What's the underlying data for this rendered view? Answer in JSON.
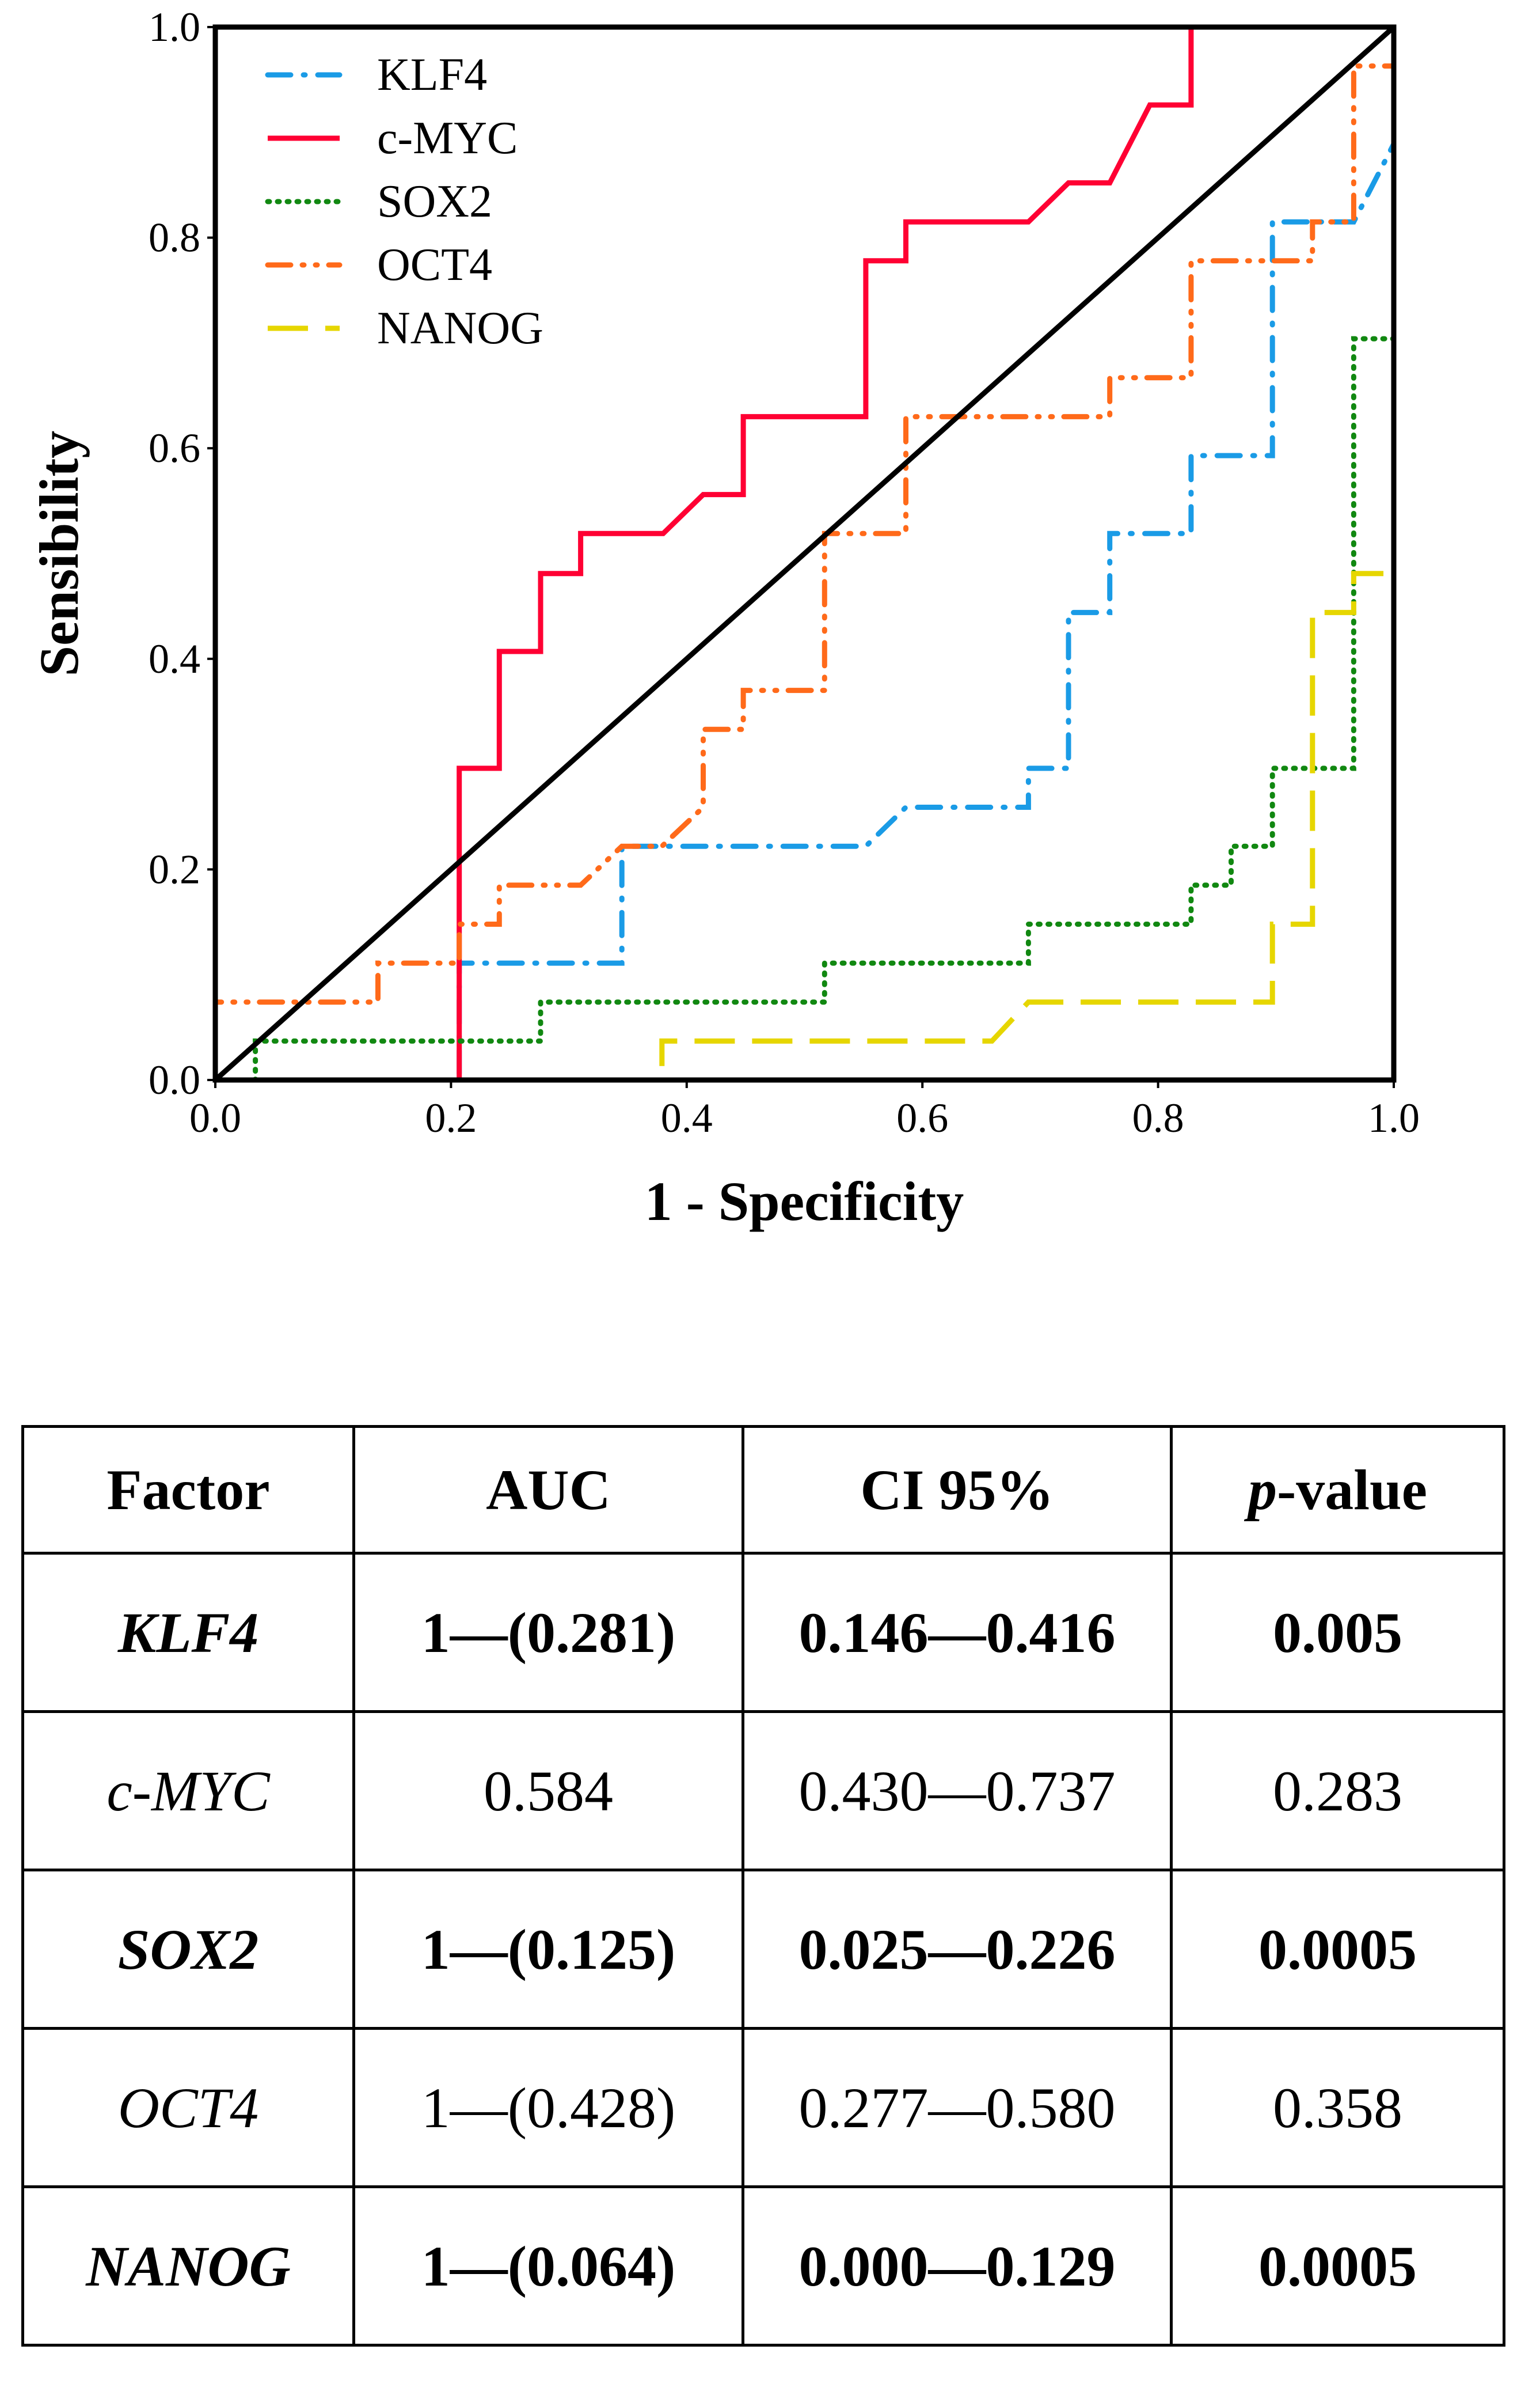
{
  "chart_data": {
    "type": "line",
    "title": "",
    "xlabel": "1 - Specificity",
    "ylabel": "Sensibility",
    "xlim": [
      0,
      1
    ],
    "ylim": [
      0,
      1
    ],
    "xticks": [
      "0.0",
      "0.2",
      "0.4",
      "0.6",
      "0.8",
      "1.0"
    ],
    "yticks": [
      "0.0",
      "0.2",
      "0.4",
      "0.6",
      "0.8",
      "1.0"
    ],
    "grid": false,
    "legend_position": "top-left",
    "reference_line": {
      "name": "diagonal",
      "x": [
        0,
        1
      ],
      "y": [
        0,
        1
      ],
      "color": "#000000"
    },
    "series": [
      {
        "name": "KLF4",
        "style": "dash-dot",
        "color": "#1a9be6",
        "x": [
          0,
          0.207,
          0.207,
          0.345,
          0.345,
          0.552,
          0.586,
          0.69,
          0.69,
          0.724,
          0.724,
          0.759,
          0.759,
          0.828,
          0.828,
          0.897,
          0.897,
          0.966,
          1.0,
          1.0
        ],
        "y": [
          0,
          0,
          0.111,
          0.111,
          0.222,
          0.222,
          0.259,
          0.259,
          0.296,
          0.296,
          0.444,
          0.444,
          0.519,
          0.519,
          0.593,
          0.593,
          0.815,
          0.815,
          0.889,
          1.0
        ]
      },
      {
        "name": "c-MYC",
        "style": "solid",
        "color": "#ff0033",
        "x": [
          0,
          0.207,
          0.207,
          0.241,
          0.241,
          0.276,
          0.276,
          0.31,
          0.31,
          0.38,
          0.414,
          0.448,
          0.448,
          0.552,
          0.552,
          0.586,
          0.586,
          0.69,
          0.724,
          0.759,
          0.793,
          0.828,
          0.828,
          1.0
        ],
        "y": [
          0,
          0,
          0.296,
          0.296,
          0.407,
          0.407,
          0.481,
          0.481,
          0.519,
          0.519,
          0.556,
          0.556,
          0.63,
          0.63,
          0.778,
          0.778,
          0.815,
          0.815,
          0.852,
          0.852,
          0.926,
          0.926,
          1.0,
          1.0
        ]
      },
      {
        "name": "SOX2",
        "style": "dotted",
        "color": "#118811",
        "x": [
          0,
          0.034,
          0.034,
          0.276,
          0.276,
          0.517,
          0.517,
          0.69,
          0.69,
          0.828,
          0.828,
          0.862,
          0.862,
          0.897,
          0.897,
          0.966,
          0.966,
          1.0,
          1.0
        ],
        "y": [
          0,
          0,
          0.037,
          0.037,
          0.074,
          0.074,
          0.111,
          0.111,
          0.148,
          0.148,
          0.185,
          0.185,
          0.222,
          0.222,
          0.296,
          0.296,
          0.704,
          0.704,
          1.0
        ]
      },
      {
        "name": "OCT4",
        "style": "dash-dot-dot",
        "color": "#ff6a1a",
        "x": [
          0,
          0,
          0.138,
          0.138,
          0.207,
          0.207,
          0.241,
          0.241,
          0.31,
          0.345,
          0.379,
          0.414,
          0.414,
          0.448,
          0.448,
          0.517,
          0.517,
          0.586,
          0.586,
          0.759,
          0.759,
          0.828,
          0.828,
          0.931,
          0.931,
          0.966,
          0.966,
          1.0,
          1.0
        ],
        "y": [
          0,
          0.074,
          0.074,
          0.111,
          0.111,
          0.148,
          0.148,
          0.185,
          0.185,
          0.222,
          0.222,
          0.259,
          0.333,
          0.333,
          0.37,
          0.37,
          0.519,
          0.519,
          0.63,
          0.63,
          0.667,
          0.667,
          0.778,
          0.778,
          0.815,
          0.815,
          0.963,
          0.963,
          1.0
        ]
      },
      {
        "name": "NANOG",
        "style": "long-dash",
        "color": "#e6d600",
        "x": [
          0,
          0.379,
          0.379,
          0.659,
          0.69,
          0.897,
          0.897,
          0.931,
          0.931,
          0.966,
          0.966,
          1.0,
          1.0
        ],
        "y": [
          0,
          0,
          0.037,
          0.037,
          0.074,
          0.074,
          0.148,
          0.148,
          0.444,
          0.444,
          0.481,
          0.481,
          1.0
        ]
      }
    ]
  },
  "table": {
    "headers": [
      "Factor",
      "AUC",
      "CI 95%",
      "-value"
    ],
    "header_p": "p",
    "rows": [
      {
        "factor": "KLF4",
        "auc": "1—(0.281)",
        "ci": "0.146—0.416",
        "p": "0.005",
        "bold": true
      },
      {
        "factor": "c-MYC",
        "auc": "0.584",
        "ci": "0.430—0.737",
        "p": "0.283",
        "bold": false
      },
      {
        "factor": "SOX2",
        "auc": "1—(0.125)",
        "ci": "0.025—0.226",
        "p": "0.0005",
        "bold": true
      },
      {
        "factor": "OCT4",
        "auc": "1—(0.428)",
        "ci": "0.277—0.580",
        "p": "0.358",
        "bold": false
      },
      {
        "factor": "NANOG",
        "auc": "1—(0.064)",
        "ci": "0.000—0.129",
        "p": "0.0005",
        "bold": true
      }
    ]
  }
}
